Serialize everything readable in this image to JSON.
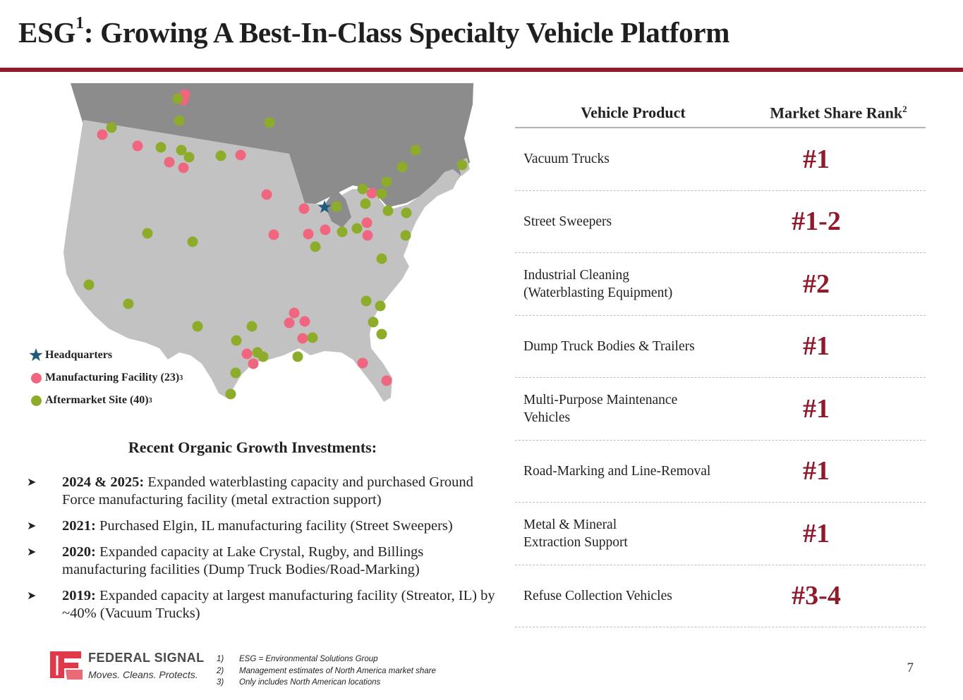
{
  "title": {
    "main": "ESG",
    "sup": "1",
    "rest": ": Growing A Best-In-Class Specialty Vehicle Platform"
  },
  "colors": {
    "accent": "#8e1a2b",
    "manufacturing": "#f0667f",
    "aftermarket": "#8cac2a",
    "headquarters": "#1f5b7a"
  },
  "legend": {
    "headquarters": "Headquarters",
    "manufacturing": "Manufacturing Facility (23)",
    "manufacturing_sup": "3",
    "aftermarket": "Aftermarket Site (40)",
    "aftermarket_sup": "3"
  },
  "investments": {
    "title": "Recent Organic Growth Investments:",
    "bullet_icon": "arrow-bullet-icon",
    "items": [
      {
        "year": "2024 & 2025:",
        "text": " Expanded waterblasting capacity and purchased Ground Force manufacturing facility (metal extraction support)"
      },
      {
        "year": "2021:",
        "text": " Purchased Elgin, IL manufacturing facility (Street Sweepers)"
      },
      {
        "year": "2020:",
        "text": " Expanded capacity at Lake Crystal, Rugby, and Billings manufacturing facilities (Dump Truck Bodies/Road-Marking)"
      },
      {
        "year": "2019:",
        "text": " Expanded capacity at largest manufacturing facility (Streator, IL) by ~40% (Vacuum Trucks)"
      }
    ]
  },
  "table": {
    "col1": "Vehicle Product",
    "col2": "Market Share Rank",
    "col2_sup": "2",
    "rows": [
      {
        "product": "Vacuum Trucks",
        "rank": "#1"
      },
      {
        "product": "Street Sweepers",
        "rank": "#1-2"
      },
      {
        "product": "Industrial Cleaning\n(Waterblasting Equipment)",
        "rank": "#2"
      },
      {
        "product": "Dump Truck Bodies & Trailers",
        "rank": "#1"
      },
      {
        "product": "Multi-Purpose Maintenance\nVehicles",
        "rank": "#1"
      },
      {
        "product": "Road-Marking and Line-Removal",
        "rank": "#1"
      },
      {
        "product": "Metal & Mineral\nExtraction Support",
        "rank": "#1"
      },
      {
        "product": "Refuse Collection Vehicles",
        "rank": "#3-4"
      }
    ]
  },
  "logo": {
    "name": "FEDERAL SIGNAL",
    "tagline": "Moves. Cleans. Protects."
  },
  "footnotes": [
    {
      "num": "1)",
      "text": "ESG = Environmental Solutions Group"
    },
    {
      "num": "2)",
      "text": "Management estimates of North America market share"
    },
    {
      "num": "3)",
      "text": "Only includes North American locations"
    }
  ],
  "page_number": "7"
}
